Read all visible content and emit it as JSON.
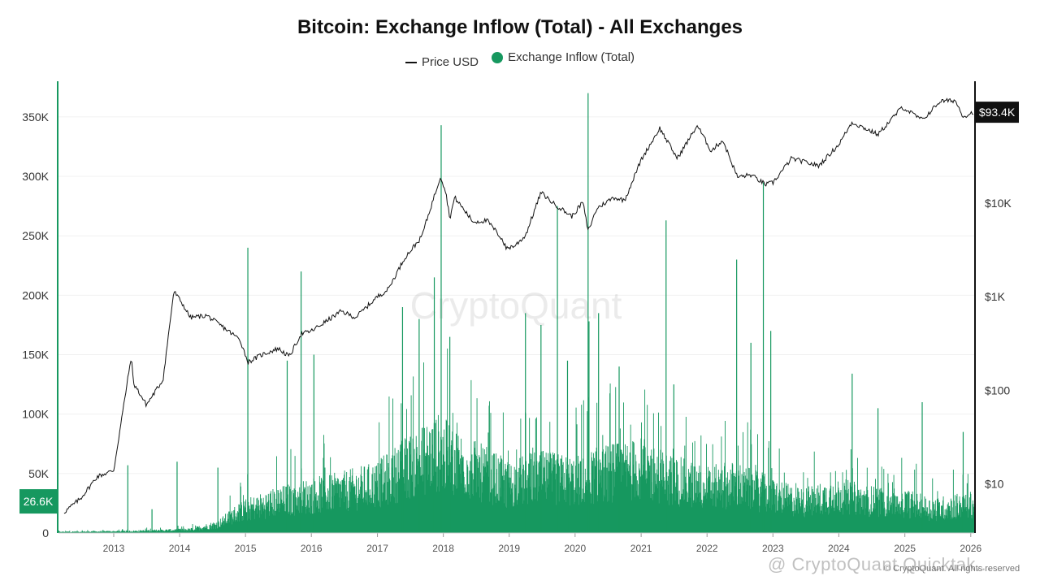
{
  "chart_data": {
    "type": "bar",
    "title": "Bitcoin: Exchange Inflow (Total) - All Exchanges",
    "legend": [
      {
        "label": "Price USD",
        "marker": "line",
        "color": "#111111"
      },
      {
        "label": "Exchange Inflow (Total)",
        "marker": "dot",
        "color": "#16985f"
      }
    ],
    "legend_position": "top-center",
    "grid": true,
    "x_axis": {
      "type": "date",
      "range": [
        "2012-03-01",
        "2026-01-20"
      ],
      "ticks": [
        "2013",
        "2014",
        "2015",
        "2016",
        "2017",
        "2018",
        "2019",
        "2020",
        "2021",
        "2022",
        "2023",
        "2024",
        "2025",
        "2026"
      ]
    },
    "y_left": {
      "label": "",
      "ylim": [
        0,
        380000
      ],
      "ticks": [
        0,
        50000,
        100000,
        150000,
        200000,
        250000,
        300000,
        350000
      ],
      "tick_labels": [
        "0",
        "50K",
        "100K",
        "150K",
        "200K",
        "250K",
        "300K",
        "350K"
      ]
    },
    "y_right": {
      "label": "",
      "scale": "log",
      "ylim": [
        3,
        200000
      ],
      "ticks": [
        10,
        100,
        1000,
        10000
      ],
      "tick_labels": [
        "$10",
        "$100",
        "$1K",
        "$10K"
      ]
    },
    "current_values": {
      "inflow_label": "26.6K",
      "price_label": "$93.4K"
    },
    "watermark": "CryptoQuant",
    "copyright": "© CryptoQuant. All rights reserved",
    "credit_overlay": "@ CryptoQuant Quicktak...",
    "series": [
      {
        "name": "Price USD",
        "type": "line",
        "axis": "right",
        "color": "#111111",
        "points": [
          [
            "2012-04-01",
            5
          ],
          [
            "2012-07-01",
            7
          ],
          [
            "2012-10-01",
            12
          ],
          [
            "2013-01-01",
            14
          ],
          [
            "2013-04-08",
            230
          ],
          [
            "2013-04-20",
            120
          ],
          [
            "2013-07-01",
            70
          ],
          [
            "2013-10-01",
            130
          ],
          [
            "2013-11-30",
            1150
          ],
          [
            "2014-01-15",
            850
          ],
          [
            "2014-03-01",
            600
          ],
          [
            "2014-06-01",
            630
          ],
          [
            "2014-09-01",
            470
          ],
          [
            "2014-12-01",
            350
          ],
          [
            "2015-01-15",
            200
          ],
          [
            "2015-04-01",
            240
          ],
          [
            "2015-07-01",
            280
          ],
          [
            "2015-09-01",
            230
          ],
          [
            "2015-11-05",
            400
          ],
          [
            "2016-01-01",
            430
          ],
          [
            "2016-06-15",
            700
          ],
          [
            "2016-09-01",
            600
          ],
          [
            "2017-01-01",
            1000
          ],
          [
            "2017-03-01",
            1200
          ],
          [
            "2017-06-01",
            2600
          ],
          [
            "2017-09-01",
            4300
          ],
          [
            "2017-12-17",
            19500
          ],
          [
            "2018-01-15",
            13000
          ],
          [
            "2018-02-06",
            6900
          ],
          [
            "2018-03-05",
            11500
          ],
          [
            "2018-06-15",
            6300
          ],
          [
            "2018-09-01",
            6500
          ],
          [
            "2018-11-20",
            4200
          ],
          [
            "2018-12-15",
            3300
          ],
          [
            "2019-02-01",
            3500
          ],
          [
            "2019-04-01",
            4500
          ],
          [
            "2019-06-26",
            13000
          ],
          [
            "2019-09-01",
            10000
          ],
          [
            "2019-12-15",
            7200
          ],
          [
            "2020-02-13",
            10300
          ],
          [
            "2020-03-13",
            5000
          ],
          [
            "2020-05-01",
            8800
          ],
          [
            "2020-08-01",
            11500
          ],
          [
            "2020-10-01",
            10700
          ],
          [
            "2021-01-01",
            29000
          ],
          [
            "2021-04-14",
            63000
          ],
          [
            "2021-07-20",
            30000
          ],
          [
            "2021-11-08",
            67500
          ],
          [
            "2022-01-24",
            36000
          ],
          [
            "2022-03-29",
            47000
          ],
          [
            "2022-06-18",
            19000
          ],
          [
            "2022-09-01",
            20000
          ],
          [
            "2022-11-21",
            15800
          ],
          [
            "2023-01-01",
            16500
          ],
          [
            "2023-04-14",
            30000
          ],
          [
            "2023-09-11",
            25000
          ],
          [
            "2023-12-31",
            42000
          ],
          [
            "2024-03-14",
            73000
          ],
          [
            "2024-08-05",
            54000
          ],
          [
            "2024-12-17",
            106000
          ],
          [
            "2025-04-08",
            77000
          ],
          [
            "2025-07-14",
            122000
          ],
          [
            "2025-10-06",
            125000
          ],
          [
            "2025-11-21",
            84000
          ],
          [
            "2026-01-15",
            93400
          ]
        ]
      },
      {
        "name": "Exchange Inflow (Total)",
        "type": "bar",
        "axis": "left",
        "color": "#16985f",
        "baseline": [
          [
            "2012-03-01",
            1000
          ],
          [
            "2013-03-01",
            1500
          ],
          [
            "2014-03-01",
            3000
          ],
          [
            "2014-08-01",
            8000
          ],
          [
            "2014-12-01",
            20000
          ],
          [
            "2015-06-01",
            28000
          ],
          [
            "2016-01-01",
            35000
          ],
          [
            "2016-06-01",
            38000
          ],
          [
            "2017-01-01",
            45000
          ],
          [
            "2017-06-01",
            60000
          ],
          [
            "2017-12-01",
            75000
          ],
          [
            "2018-06-01",
            60000
          ],
          [
            "2019-01-01",
            45000
          ],
          [
            "2019-06-01",
            52000
          ],
          [
            "2020-01-01",
            48000
          ],
          [
            "2020-06-01",
            55000
          ],
          [
            "2021-01-01",
            60000
          ],
          [
            "2021-06-01",
            50000
          ],
          [
            "2022-01-01",
            42000
          ],
          [
            "2022-06-01",
            45000
          ],
          [
            "2023-01-01",
            35000
          ],
          [
            "2023-06-01",
            28000
          ],
          [
            "2024-01-01",
            35000
          ],
          [
            "2024-06-01",
            30000
          ],
          [
            "2025-01-01",
            28000
          ],
          [
            "2025-06-01",
            22000
          ],
          [
            "2026-01-15",
            26600
          ]
        ],
        "spikes": [
          [
            "2013-03-20",
            57000
          ],
          [
            "2013-08-01",
            20000
          ],
          [
            "2013-12-18",
            60000
          ],
          [
            "2014-08-01",
            55000
          ],
          [
            "2015-01-14",
            240000
          ],
          [
            "2015-08-20",
            145000
          ],
          [
            "2015-11-05",
            220000
          ],
          [
            "2016-01-15",
            150000
          ],
          [
            "2017-05-20",
            190000
          ],
          [
            "2017-08-20",
            180000
          ],
          [
            "2017-11-12",
            215000
          ],
          [
            "2017-12-20",
            343000
          ],
          [
            "2018-02-06",
            165000
          ],
          [
            "2019-04-01",
            185000
          ],
          [
            "2019-06-26",
            175000
          ],
          [
            "2019-09-25",
            275000
          ],
          [
            "2019-11-20",
            145000
          ],
          [
            "2020-03-13",
            370000
          ],
          [
            "2020-03-18",
            178000
          ],
          [
            "2020-05-10",
            185000
          ],
          [
            "2020-09-01",
            140000
          ],
          [
            "2021-05-19",
            263000
          ],
          [
            "2021-07-01",
            125000
          ],
          [
            "2022-06-14",
            230000
          ],
          [
            "2022-09-01",
            160000
          ],
          [
            "2022-11-09",
            295000
          ],
          [
            "2022-12-20",
            170000
          ],
          [
            "2024-03-15",
            134000
          ],
          [
            "2024-08-05",
            105000
          ],
          [
            "2025-04-07",
            110000
          ],
          [
            "2025-11-20",
            85000
          ]
        ]
      }
    ]
  }
}
